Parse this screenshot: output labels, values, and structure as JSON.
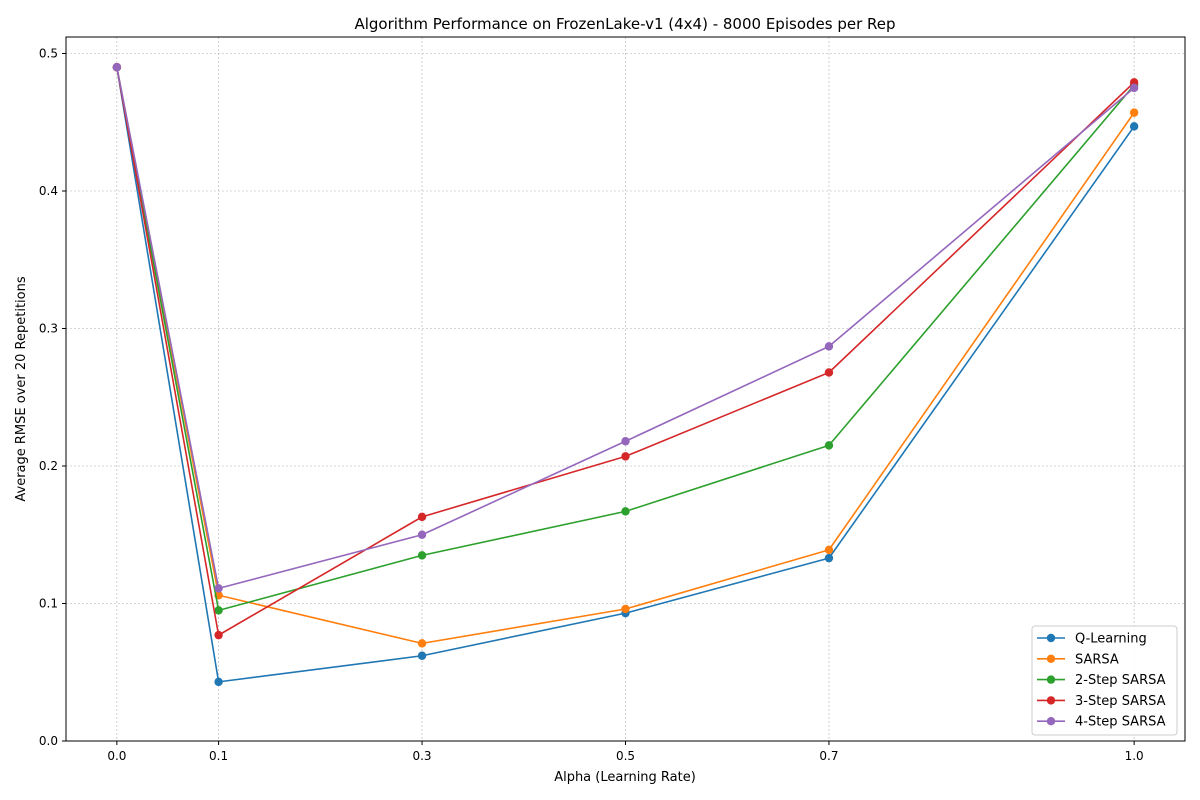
{
  "chart_data": {
    "type": "line",
    "title": "Algorithm Performance on FrozenLake-v1 (4x4) - 8000 Episodes per Rep",
    "xlabel": "Alpha (Learning Rate)",
    "ylabel": "Average RMSE over 20 Repetitions",
    "x": [
      0.0,
      0.1,
      0.3,
      0.5,
      0.7,
      1.0
    ],
    "x_tick_labels": [
      "0.0",
      "0.1",
      "0.3",
      "0.5",
      "0.7",
      "1.0"
    ],
    "xlim": [
      -0.05,
      1.05
    ],
    "ylim": [
      0.0,
      0.512
    ],
    "y_ticks": [
      0.0,
      0.1,
      0.2,
      0.3,
      0.4,
      0.5
    ],
    "y_tick_labels": [
      "0.0",
      "0.1",
      "0.2",
      "0.3",
      "0.4",
      "0.5"
    ],
    "grid": true,
    "legend_position": "lower-right",
    "series": [
      {
        "name": "Q-Learning",
        "color": "#1f77b4",
        "values": [
          0.49,
          0.043,
          0.062,
          0.093,
          0.133,
          0.447
        ]
      },
      {
        "name": "SARSA",
        "color": "#ff7f0e",
        "values": [
          0.49,
          0.106,
          0.071,
          0.096,
          0.139,
          0.457
        ]
      },
      {
        "name": "2-Step SARSA",
        "color": "#2ca02c",
        "values": [
          0.49,
          0.095,
          0.135,
          0.167,
          0.215,
          0.477
        ]
      },
      {
        "name": "3-Step SARSA",
        "color": "#d62728",
        "values": [
          0.49,
          0.077,
          0.163,
          0.207,
          0.268,
          0.479
        ]
      },
      {
        "name": "4-Step SARSA",
        "color": "#9467bd",
        "values": [
          0.49,
          0.111,
          0.15,
          0.218,
          0.287,
          0.475
        ]
      }
    ]
  }
}
